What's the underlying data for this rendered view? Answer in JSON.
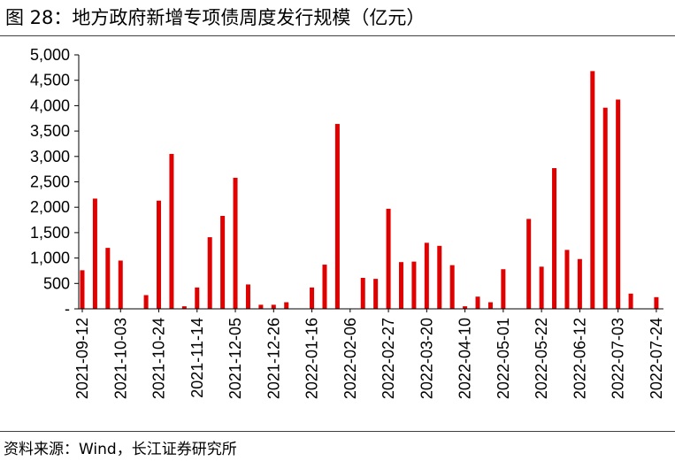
{
  "title": "图 28：地方政府新增专项债周度发行规模（亿元）",
  "source": "资料来源：Wind，长江证券研究所",
  "colors": {
    "bar": "#e00000",
    "axis": "#000000",
    "rule": "#404040"
  },
  "chart_data": {
    "type": "bar",
    "title": "图 28：地方政府新增专项债周度发行规模（亿元）",
    "xlabel": "",
    "ylabel": "",
    "ylim": [
      0,
      5000
    ],
    "yticks": [
      0,
      500,
      1000,
      1500,
      2000,
      2500,
      3000,
      3500,
      4000,
      4500,
      5000
    ],
    "ytick_labels": [
      "-",
      "500",
      "1,000",
      "1,500",
      "2,000",
      "2,500",
      "3,000",
      "3,500",
      "4,000",
      "4,500",
      "5,000"
    ],
    "xtick_labels": [
      "2021-09-12",
      "2021-10-03",
      "2021-10-24",
      "2021-11-14",
      "2021-12-05",
      "2021-12-26",
      "2022-01-16",
      "2022-02-06",
      "2022-02-27",
      "2022-03-20",
      "2022-04-10",
      "2022-05-01",
      "2022-05-22",
      "2022-06-12",
      "2022-07-03",
      "2022-07-24"
    ],
    "grid": false,
    "legend": "none",
    "categories": [
      "2021-09-12",
      "2021-09-19",
      "2021-09-26",
      "2021-10-03",
      "2021-10-10",
      "2021-10-17",
      "2021-10-24",
      "2021-10-31",
      "2021-11-07",
      "2021-11-14",
      "2021-11-21",
      "2021-11-28",
      "2021-12-05",
      "2021-12-12",
      "2021-12-19",
      "2021-12-26",
      "2022-01-02",
      "2022-01-09",
      "2022-01-16",
      "2022-01-23",
      "2022-01-30",
      "2022-02-06",
      "2022-02-13",
      "2022-02-20",
      "2022-02-27",
      "2022-03-06",
      "2022-03-13",
      "2022-03-20",
      "2022-03-27",
      "2022-04-03",
      "2022-04-10",
      "2022-04-17",
      "2022-04-24",
      "2022-05-01",
      "2022-05-08",
      "2022-05-15",
      "2022-05-22",
      "2022-05-29",
      "2022-06-05",
      "2022-06-12",
      "2022-06-19",
      "2022-06-26",
      "2022-07-03",
      "2022-07-10",
      "2022-07-17",
      "2022-07-24"
    ],
    "values": [
      760,
      2170,
      1200,
      950,
      0,
      270,
      2130,
      3050,
      50,
      420,
      1410,
      1830,
      2580,
      480,
      80,
      80,
      130,
      0,
      420,
      870,
      3640,
      5,
      610,
      590,
      1970,
      920,
      930,
      1300,
      1240,
      860,
      50,
      240,
      130,
      780,
      0,
      1770,
      830,
      2770,
      1160,
      980,
      4680,
      3960,
      4120,
      300,
      0,
      230
    ]
  }
}
